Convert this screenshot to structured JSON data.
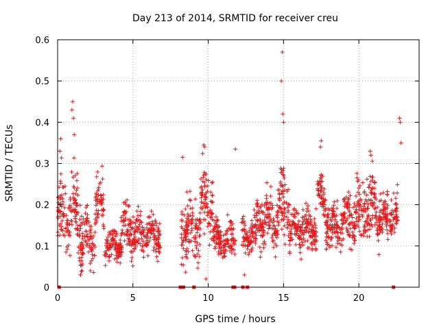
{
  "chart_data": {
    "type": "scatter",
    "title": "Day 213 of 2014, SRMTID for receiver creu",
    "xlabel": "GPS time / hours",
    "ylabel": "SRMTID / TECUs",
    "xlim": [
      0,
      24
    ],
    "ylim": [
      0,
      0.6
    ],
    "x_ticks": [
      0,
      5,
      10,
      15,
      20
    ],
    "x_tick_labels": [
      "0",
      "5",
      "10",
      "15",
      "20"
    ],
    "y_ticks": [
      0,
      0.1,
      0.2,
      0.3,
      0.4,
      0.5,
      0.6
    ],
    "y_tick_labels": [
      "0",
      "0.1",
      "0.2",
      "0.3",
      "0.4",
      "0.5",
      "0.6"
    ],
    "grid": true,
    "marker": "+",
    "marker_color": "#e41a1c",
    "segments": [
      {
        "t0": 0.0,
        "t1": 1.5,
        "base": 0.17,
        "spread": 0.08
      },
      {
        "t0": 1.5,
        "t1": 2.5,
        "base": 0.12,
        "spread": 0.06
      },
      {
        "t0": 2.5,
        "t1": 3.1,
        "base": 0.2,
        "spread": 0.06
      },
      {
        "t0": 3.1,
        "t1": 4.2,
        "base": 0.1,
        "spread": 0.035
      },
      {
        "t0": 4.2,
        "t1": 5.0,
        "base": 0.14,
        "spread": 0.05
      },
      {
        "t0": 5.0,
        "t1": 6.8,
        "base": 0.13,
        "spread": 0.045
      },
      {
        "t0": 8.2,
        "t1": 9.5,
        "base": 0.14,
        "spread": 0.06
      },
      {
        "t0": 9.5,
        "t1": 10.3,
        "base": 0.2,
        "spread": 0.07
      },
      {
        "t0": 10.3,
        "t1": 11.8,
        "base": 0.12,
        "spread": 0.035
      },
      {
        "t0": 12.2,
        "t1": 13.2,
        "base": 0.12,
        "spread": 0.04
      },
      {
        "t0": 13.2,
        "t1": 14.6,
        "base": 0.16,
        "spread": 0.05
      },
      {
        "t0": 14.6,
        "t1": 15.4,
        "base": 0.2,
        "spread": 0.07
      },
      {
        "t0": 15.4,
        "t1": 17.2,
        "base": 0.14,
        "spread": 0.045
      },
      {
        "t0": 17.2,
        "t1": 17.8,
        "base": 0.22,
        "spread": 0.04
      },
      {
        "t0": 17.8,
        "t1": 19.0,
        "base": 0.15,
        "spread": 0.045
      },
      {
        "t0": 19.0,
        "t1": 20.2,
        "base": 0.17,
        "spread": 0.06
      },
      {
        "t0": 20.2,
        "t1": 21.2,
        "base": 0.2,
        "spread": 0.07
      },
      {
        "t0": 21.2,
        "t1": 22.6,
        "base": 0.17,
        "spread": 0.055
      }
    ],
    "highlights": [
      {
        "x": 14.92,
        "y": 0.57
      },
      {
        "x": 14.85,
        "y": 0.5
      },
      {
        "x": 14.95,
        "y": 0.42
      },
      {
        "x": 15.0,
        "y": 0.4
      },
      {
        "x": 1.0,
        "y": 0.45
      },
      {
        "x": 0.95,
        "y": 0.43
      },
      {
        "x": 1.05,
        "y": 0.41
      },
      {
        "x": 0.2,
        "y": 0.36
      },
      {
        "x": 0.15,
        "y": 0.33
      },
      {
        "x": 1.1,
        "y": 0.37
      },
      {
        "x": 22.7,
        "y": 0.41
      },
      {
        "x": 22.75,
        "y": 0.4
      },
      {
        "x": 22.8,
        "y": 0.35
      },
      {
        "x": 11.8,
        "y": 0.335
      },
      {
        "x": 9.7,
        "y": 0.345
      },
      {
        "x": 9.75,
        "y": 0.34
      },
      {
        "x": 8.3,
        "y": 0.315
      },
      {
        "x": 17.5,
        "y": 0.355
      },
      {
        "x": 17.45,
        "y": 0.34
      },
      {
        "x": 20.75,
        "y": 0.33
      },
      {
        "x": 20.8,
        "y": 0.32
      },
      {
        "x": 9.85,
        "y": 0.02
      },
      {
        "x": 12.4,
        "y": 0.03
      }
    ],
    "zero_points": [
      0.1,
      8.15,
      8.25,
      8.35,
      9.05,
      11.65,
      11.75,
      12.3,
      12.6,
      22.3
    ]
  }
}
